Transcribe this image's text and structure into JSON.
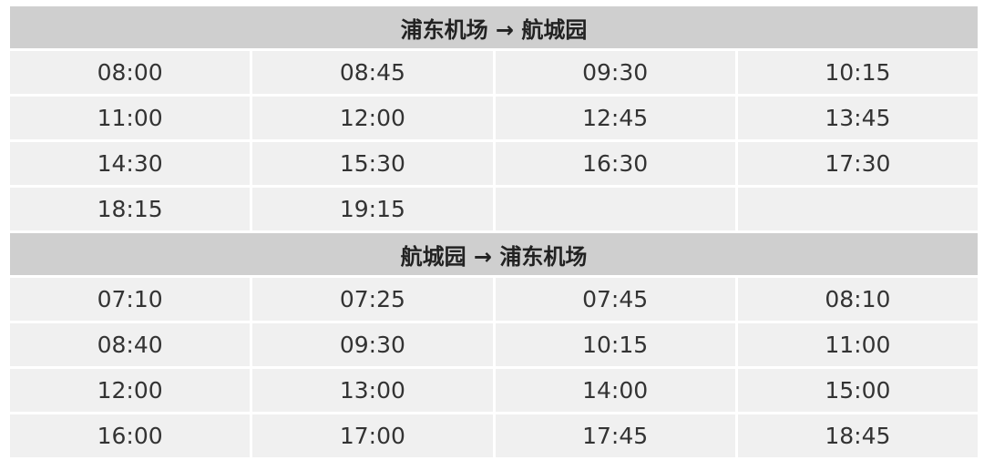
{
  "sections": [
    {
      "title": "浦东机场 → 航城园",
      "rows": [
        [
          "08:00",
          "08:45",
          "09:30",
          "10:15"
        ],
        [
          "11:00",
          "12:00",
          "12:45",
          "13:45"
        ],
        [
          "14:30",
          "15:30",
          "16:30",
          "17:30"
        ],
        [
          "18:15",
          "19:15",
          "",
          ""
        ]
      ]
    },
    {
      "title": "航城园 → 浦东机场",
      "rows": [
        [
          "07:10",
          "07:25",
          "07:45",
          "08:10"
        ],
        [
          "08:40",
          "09:30",
          "10:15",
          "11:00"
        ],
        [
          "12:00",
          "13:00",
          "14:00",
          "15:00"
        ],
        [
          "16:00",
          "17:00",
          "17:45",
          "18:45"
        ]
      ]
    }
  ],
  "colors": {
    "header_bg": "#cfcfcf",
    "cell_bg": "#f0f0f0",
    "text": "#333333"
  }
}
